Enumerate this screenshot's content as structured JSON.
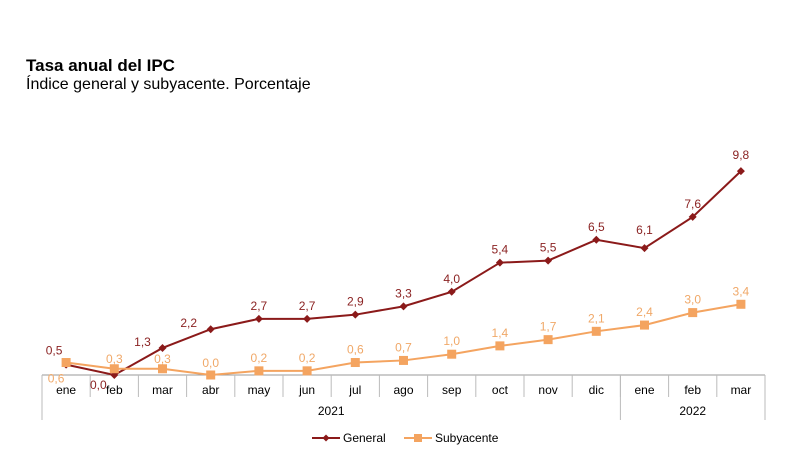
{
  "chart_data": {
    "type": "line",
    "title": "Tasa anual del IPC",
    "subtitle": "Índice general y subyacente. Porcentaje",
    "categories": [
      "ene",
      "feb",
      "mar",
      "abr",
      "may",
      "jun",
      "jul",
      "ago",
      "sep",
      "oct",
      "nov",
      "dic",
      "ene",
      "feb",
      "mar"
    ],
    "year_groups": [
      {
        "label": "2021",
        "count": 12
      },
      {
        "label": "2022",
        "count": 3
      }
    ],
    "series": [
      {
        "name": "General",
        "color": "#8B1A1A",
        "label_color": "#8B2323",
        "marker": "diamond",
        "values": [
          0.5,
          0.0,
          1.3,
          2.2,
          2.7,
          2.7,
          2.9,
          3.3,
          4.0,
          5.4,
          5.5,
          6.5,
          6.1,
          7.6,
          9.8
        ],
        "labels": [
          "0,5",
          "0,0",
          "1,3",
          "2,2",
          "2,7",
          "2,7",
          "2,9",
          "3,3",
          "4,0",
          "5,4",
          "5,5",
          "6,5",
          "6,1",
          "7,6",
          "9,8"
        ]
      },
      {
        "name": "Subyacente",
        "color": "#F4A460",
        "label_color": "#F0A868",
        "marker": "square",
        "values": [
          0.6,
          0.3,
          0.3,
          0.0,
          0.2,
          0.2,
          0.6,
          0.7,
          1.0,
          1.4,
          1.7,
          2.1,
          2.4,
          3.0,
          3.4
        ],
        "labels": [
          "0,6",
          "0,3",
          "0,3",
          "0,0",
          "0,2",
          "0,2",
          "0,6",
          "0,7",
          "1,0",
          "1,4",
          "1,7",
          "2,1",
          "2,4",
          "3,0",
          "3,4"
        ]
      }
    ],
    "legend": "bottom-center",
    "grid": false
  }
}
